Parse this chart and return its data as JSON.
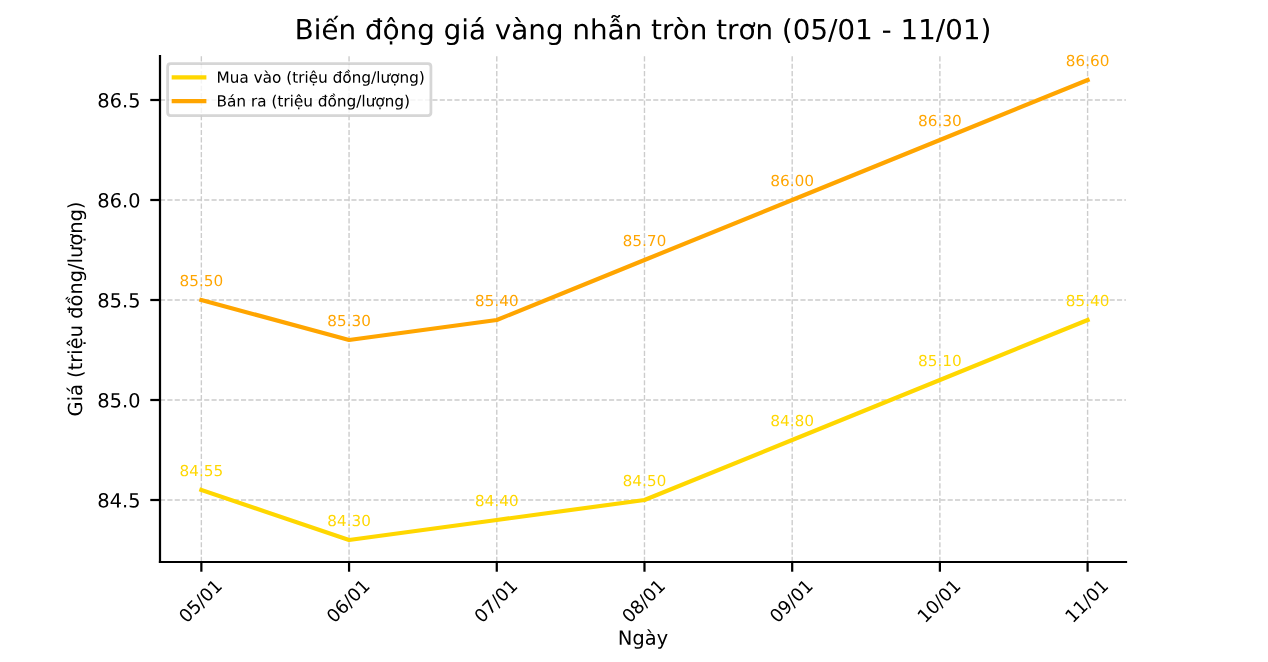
{
  "chart_data": {
    "type": "line",
    "title": "Biến động giá vàng nhẫn tròn trơn (05/01 - 11/01)",
    "xlabel": "Ngày",
    "ylabel": "Giá (triệu đồng/lượng)",
    "categories": [
      "05/01",
      "06/01",
      "07/01",
      "08/01",
      "09/01",
      "10/01",
      "11/01"
    ],
    "series": [
      {
        "name": "Mua vào (triệu đồng/lượng)",
        "color": "#ffd700",
        "values": [
          84.55,
          84.3,
          84.4,
          84.5,
          84.8,
          85.1,
          85.4
        ],
        "value_labels": [
          "84.55",
          "84.30",
          "84.40",
          "84.50",
          "84.80",
          "85.10",
          "85.40"
        ]
      },
      {
        "name": "Bán ra (triệu đồng/lượng)",
        "color": "#ffa500",
        "values": [
          85.5,
          85.3,
          85.4,
          85.7,
          86.0,
          86.3,
          86.6
        ],
        "value_labels": [
          "85.50",
          "85.30",
          "85.40",
          "85.70",
          "86.00",
          "86.30",
          "86.60"
        ]
      }
    ],
    "ylim": [
      84.19,
      86.72
    ],
    "yticks": [
      {
        "value": 84.5,
        "label": "84.5"
      },
      {
        "value": 85.0,
        "label": "85.0"
      },
      {
        "value": 85.5,
        "label": "85.5"
      },
      {
        "value": 86.0,
        "label": "86.0"
      },
      {
        "value": 86.5,
        "label": "86.5"
      }
    ],
    "grid": true,
    "legend": "top left",
    "line_style": "solid"
  }
}
